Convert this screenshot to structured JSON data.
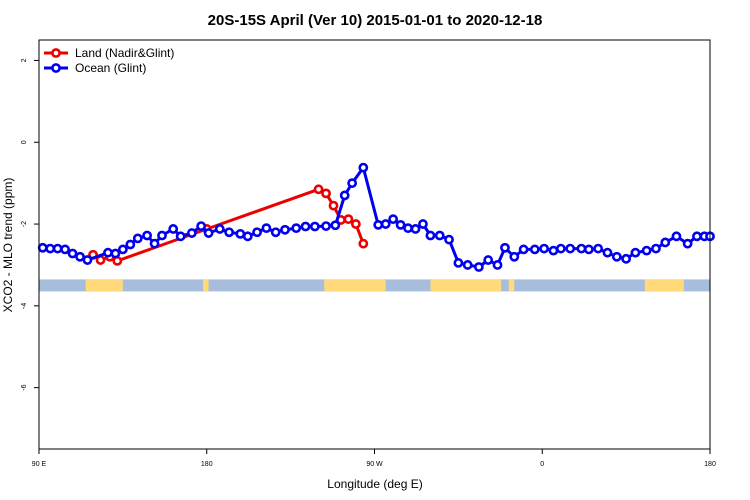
{
  "chart_data": {
    "type": "line",
    "title": "20S-15S April (Ver 10)   2015-01-01 to 2020-12-18",
    "xlabel": "Longitude (deg E)",
    "ylabel": "XCO2 - MLO trend (ppm)",
    "xlim": [
      90,
      450
    ],
    "ylim": [
      -7.5,
      2.5
    ],
    "x_ticks": [
      {
        "value": 90,
        "label": "90 E"
      },
      {
        "value": 180,
        "label": "180"
      },
      {
        "value": 270,
        "label": "90 W"
      },
      {
        "value": 360,
        "label": "0"
      },
      {
        "value": 450,
        "label": "180"
      }
    ],
    "y_ticks": [
      {
        "value": 2,
        "label": "2"
      },
      {
        "value": 0,
        "label": "0"
      },
      {
        "value": -2,
        "label": "-2"
      },
      {
        "value": -4,
        "label": "-4"
      },
      {
        "value": -6,
        "label": "-6"
      }
    ],
    "legend_position": "top-left",
    "land_mask": {
      "y": -3.5,
      "ocean_color": "#a6bddb",
      "land_color": "#ffd97a",
      "land_segments": [
        [
          115,
          135
        ],
        [
          178,
          181
        ],
        [
          243,
          276
        ],
        [
          300,
          338
        ],
        [
          342,
          345
        ],
        [
          415,
          436
        ]
      ]
    },
    "series": [
      {
        "name": "Land (Nadir&Glint)",
        "color": "#ee0000",
        "x": [
          119,
          123,
          128,
          132,
          180,
          240,
          244,
          248,
          252,
          256,
          260,
          264
        ],
        "y": [
          -2.75,
          -2.88,
          -2.8,
          -2.9,
          -2.12,
          -1.15,
          -1.25,
          -1.55,
          -1.9,
          -1.88,
          -2.0,
          -2.48
        ]
      },
      {
        "name": "Ocean (Glint)",
        "color": "#0000ee",
        "x": [
          92,
          96,
          100,
          104,
          108,
          112,
          116,
          127,
          131,
          135,
          139,
          143,
          148,
          152,
          156,
          162,
          166,
          172,
          177,
          181,
          187,
          192,
          198,
          202,
          207,
          212,
          217,
          222,
          228,
          233,
          238,
          244,
          249,
          254,
          258,
          264,
          272,
          276,
          280,
          284,
          288,
          292,
          296,
          300,
          305,
          310,
          315,
          320,
          326,
          331,
          336,
          340,
          345,
          350,
          356,
          361,
          366,
          370,
          375,
          381,
          385,
          390,
          395,
          400,
          405,
          410,
          416,
          421,
          426,
          432,
          438,
          443,
          447,
          450
        ],
        "y": [
          -2.58,
          -2.6,
          -2.6,
          -2.62,
          -2.72,
          -2.8,
          -2.88,
          -2.7,
          -2.72,
          -2.62,
          -2.5,
          -2.35,
          -2.28,
          -2.48,
          -2.28,
          -2.12,
          -2.3,
          -2.22,
          -2.05,
          -2.22,
          -2.12,
          -2.2,
          -2.24,
          -2.3,
          -2.2,
          -2.1,
          -2.2,
          -2.14,
          -2.1,
          -2.06,
          -2.06,
          -2.05,
          -2.03,
          -1.3,
          -1.0,
          -0.62,
          -2.02,
          -2.0,
          -1.88,
          -2.02,
          -2.1,
          -2.12,
          -2.0,
          -2.28,
          -2.28,
          -2.38,
          -2.95,
          -3.0,
          -3.05,
          -2.88,
          -3.0,
          -2.58,
          -2.8,
          -2.62,
          -2.62,
          -2.6,
          -2.65,
          -2.6,
          -2.6,
          -2.6,
          -2.62,
          -2.6,
          -2.7,
          -2.8,
          -2.85,
          -2.7,
          -2.65,
          -2.6,
          -2.45,
          -2.3,
          -2.48,
          -2.3,
          -2.3,
          -2.3
        ]
      }
    ]
  }
}
